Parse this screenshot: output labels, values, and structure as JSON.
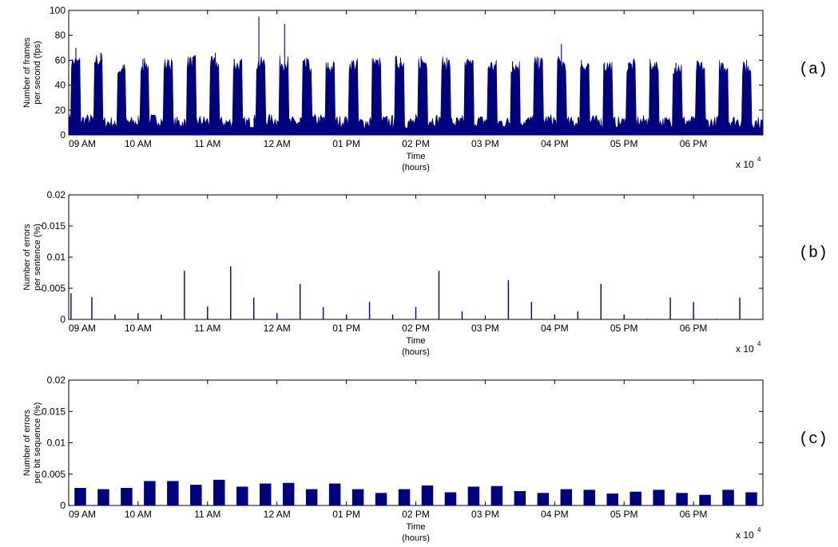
{
  "chart_data": [
    {
      "type": "bar",
      "panel_tag": "(a)",
      "ylabel_line1": "Number of frames",
      "ylabel_line2": "per second (fps)",
      "xlabel_line1": "Time",
      "xlabel_line2": "(hours)",
      "x_multiplier": "x 10",
      "x_multiplier_exp": "4",
      "ylim": [
        0,
        100
      ],
      "yticks": [
        "0",
        "20",
        "40",
        "60",
        "80",
        "100"
      ],
      "xticks": [
        "09 AM",
        "10 AM",
        "11 AM",
        "12 AM",
        "01 PM",
        "02 PM",
        "03 PM",
        "04 PM",
        "05 PM",
        "06 PM"
      ],
      "color": "#00007f",
      "cycles": [
        {
          "low": 12,
          "high": 58,
          "peak": 70
        },
        {
          "low": 10,
          "high": 60,
          "peak": 66
        },
        {
          "low": 10,
          "high": 52,
          "peak": 56
        },
        {
          "low": 12,
          "high": 56,
          "peak": 61
        },
        {
          "low": 10,
          "high": 56,
          "peak": 60
        },
        {
          "low": 11,
          "high": 58,
          "peak": 62
        },
        {
          "low": 10,
          "high": 57,
          "peak": 66
        },
        {
          "low": 10,
          "high": 56,
          "peak": 61
        },
        {
          "low": 12,
          "high": 57,
          "peak": 95
        },
        {
          "low": 10,
          "high": 58,
          "peak": 89
        },
        {
          "low": 12,
          "high": 55,
          "peak": 62
        },
        {
          "low": 11,
          "high": 54,
          "peak": 58
        },
        {
          "low": 10,
          "high": 56,
          "peak": 60
        },
        {
          "low": 11,
          "high": 57,
          "peak": 61
        },
        {
          "low": 10,
          "high": 58,
          "peak": 62
        },
        {
          "low": 12,
          "high": 58,
          "peak": 63
        },
        {
          "low": 10,
          "high": 57,
          "peak": 62
        },
        {
          "low": 11,
          "high": 56,
          "peak": 61
        },
        {
          "low": 10,
          "high": 55,
          "peak": 58
        },
        {
          "low": 11,
          "high": 55,
          "peak": 59
        },
        {
          "low": 12,
          "high": 57,
          "peak": 62
        },
        {
          "low": 10,
          "high": 57,
          "peak": 73
        },
        {
          "low": 11,
          "high": 56,
          "peak": 60
        },
        {
          "low": 10,
          "high": 55,
          "peak": 58
        },
        {
          "low": 11,
          "high": 55,
          "peak": 58
        },
        {
          "low": 10,
          "high": 55,
          "peak": 58
        },
        {
          "low": 11,
          "high": 54,
          "peak": 58
        },
        {
          "low": 10,
          "high": 54,
          "peak": 58
        },
        {
          "low": 11,
          "high": 55,
          "peak": 58
        },
        {
          "low": 10,
          "high": 53,
          "peak": 60
        }
      ]
    },
    {
      "type": "bar",
      "panel_tag": "(b)",
      "ylabel_line1": "Number of errors",
      "ylabel_line2": "per sentence (%)",
      "xlabel_line1": "Time",
      "xlabel_line2": "(hours)",
      "x_multiplier": "x 10",
      "x_multiplier_exp": "4",
      "ylim": [
        0,
        0.02
      ],
      "yticks": [
        "0",
        "0.005",
        "0.01",
        "0.015",
        "0.02"
      ],
      "xticks": [
        "09 AM",
        "10 AM",
        "11 AM",
        "12 AM",
        "01 PM",
        "02 PM",
        "03 PM",
        "04 PM",
        "05 PM",
        "06 PM"
      ],
      "color": "#00007f",
      "spikes": [
        {
          "x": 0.1,
          "y": 0.0042
        },
        {
          "x": 1.0,
          "y": 0.0036
        },
        {
          "x": 2.0,
          "y": 0.0008
        },
        {
          "x": 3.0,
          "y": 0.001
        },
        {
          "x": 4.0,
          "y": 0.0008
        },
        {
          "x": 5.0,
          "y": 0.0078
        },
        {
          "x": 6.0,
          "y": 0.0021
        },
        {
          "x": 7.0,
          "y": 0.0085
        },
        {
          "x": 8.0,
          "y": 0.0035
        },
        {
          "x": 9.0,
          "y": 0.001
        },
        {
          "x": 10.0,
          "y": 0.0057
        },
        {
          "x": 11.0,
          "y": 0.002
        },
        {
          "x": 12.0,
          "y": 0.0008
        },
        {
          "x": 13.0,
          "y": 0.0028
        },
        {
          "x": 14.0,
          "y": 0.0008
        },
        {
          "x": 15.0,
          "y": 0.002
        },
        {
          "x": 16.0,
          "y": 0.0078
        },
        {
          "x": 17.0,
          "y": 0.0013
        },
        {
          "x": 18.0,
          "y": 0.0001
        },
        {
          "x": 19.0,
          "y": 0.0063
        },
        {
          "x": 20.0,
          "y": 0.0028
        },
        {
          "x": 21.0,
          "y": 0.0008
        },
        {
          "x": 22.0,
          "y": 0.0013
        },
        {
          "x": 23.0,
          "y": 0.0057
        },
        {
          "x": 24.0,
          "y": 0.0008
        },
        {
          "x": 25.0,
          "y": 0.0001
        },
        {
          "x": 26.0,
          "y": 0.0035
        },
        {
          "x": 27.0,
          "y": 0.0028
        },
        {
          "x": 28.0,
          "y": 0.0001
        },
        {
          "x": 29.0,
          "y": 0.0035
        }
      ]
    },
    {
      "type": "bar",
      "panel_tag": "(c)",
      "ylabel_line1": "Number of errors",
      "ylabel_line2": "per bit sequence (%)",
      "xlabel_line1": "Time",
      "xlabel_line2": "(hours)",
      "x_multiplier": "x 10",
      "x_multiplier_exp": "4",
      "ylim": [
        0,
        0.02
      ],
      "yticks": [
        "0",
        "0.005",
        "0.01",
        "0.015",
        "0.02"
      ],
      "xticks": [
        "09 AM",
        "10 AM",
        "11 AM",
        "12 AM",
        "01 PM",
        "02 PM",
        "03 PM",
        "04 PM",
        "05 PM",
        "06 PM"
      ],
      "color": "#00007f",
      "values": [
        0.0028,
        0.0026,
        0.0028,
        0.0039,
        0.0039,
        0.0033,
        0.0041,
        0.003,
        0.0035,
        0.0036,
        0.0026,
        0.0035,
        0.0026,
        0.002,
        0.0026,
        0.0032,
        0.0021,
        0.003,
        0.0031,
        0.0023,
        0.002,
        0.0026,
        0.0025,
        0.0019,
        0.0022,
        0.0025,
        0.002,
        0.0017,
        0.0025,
        0.0021
      ]
    }
  ]
}
